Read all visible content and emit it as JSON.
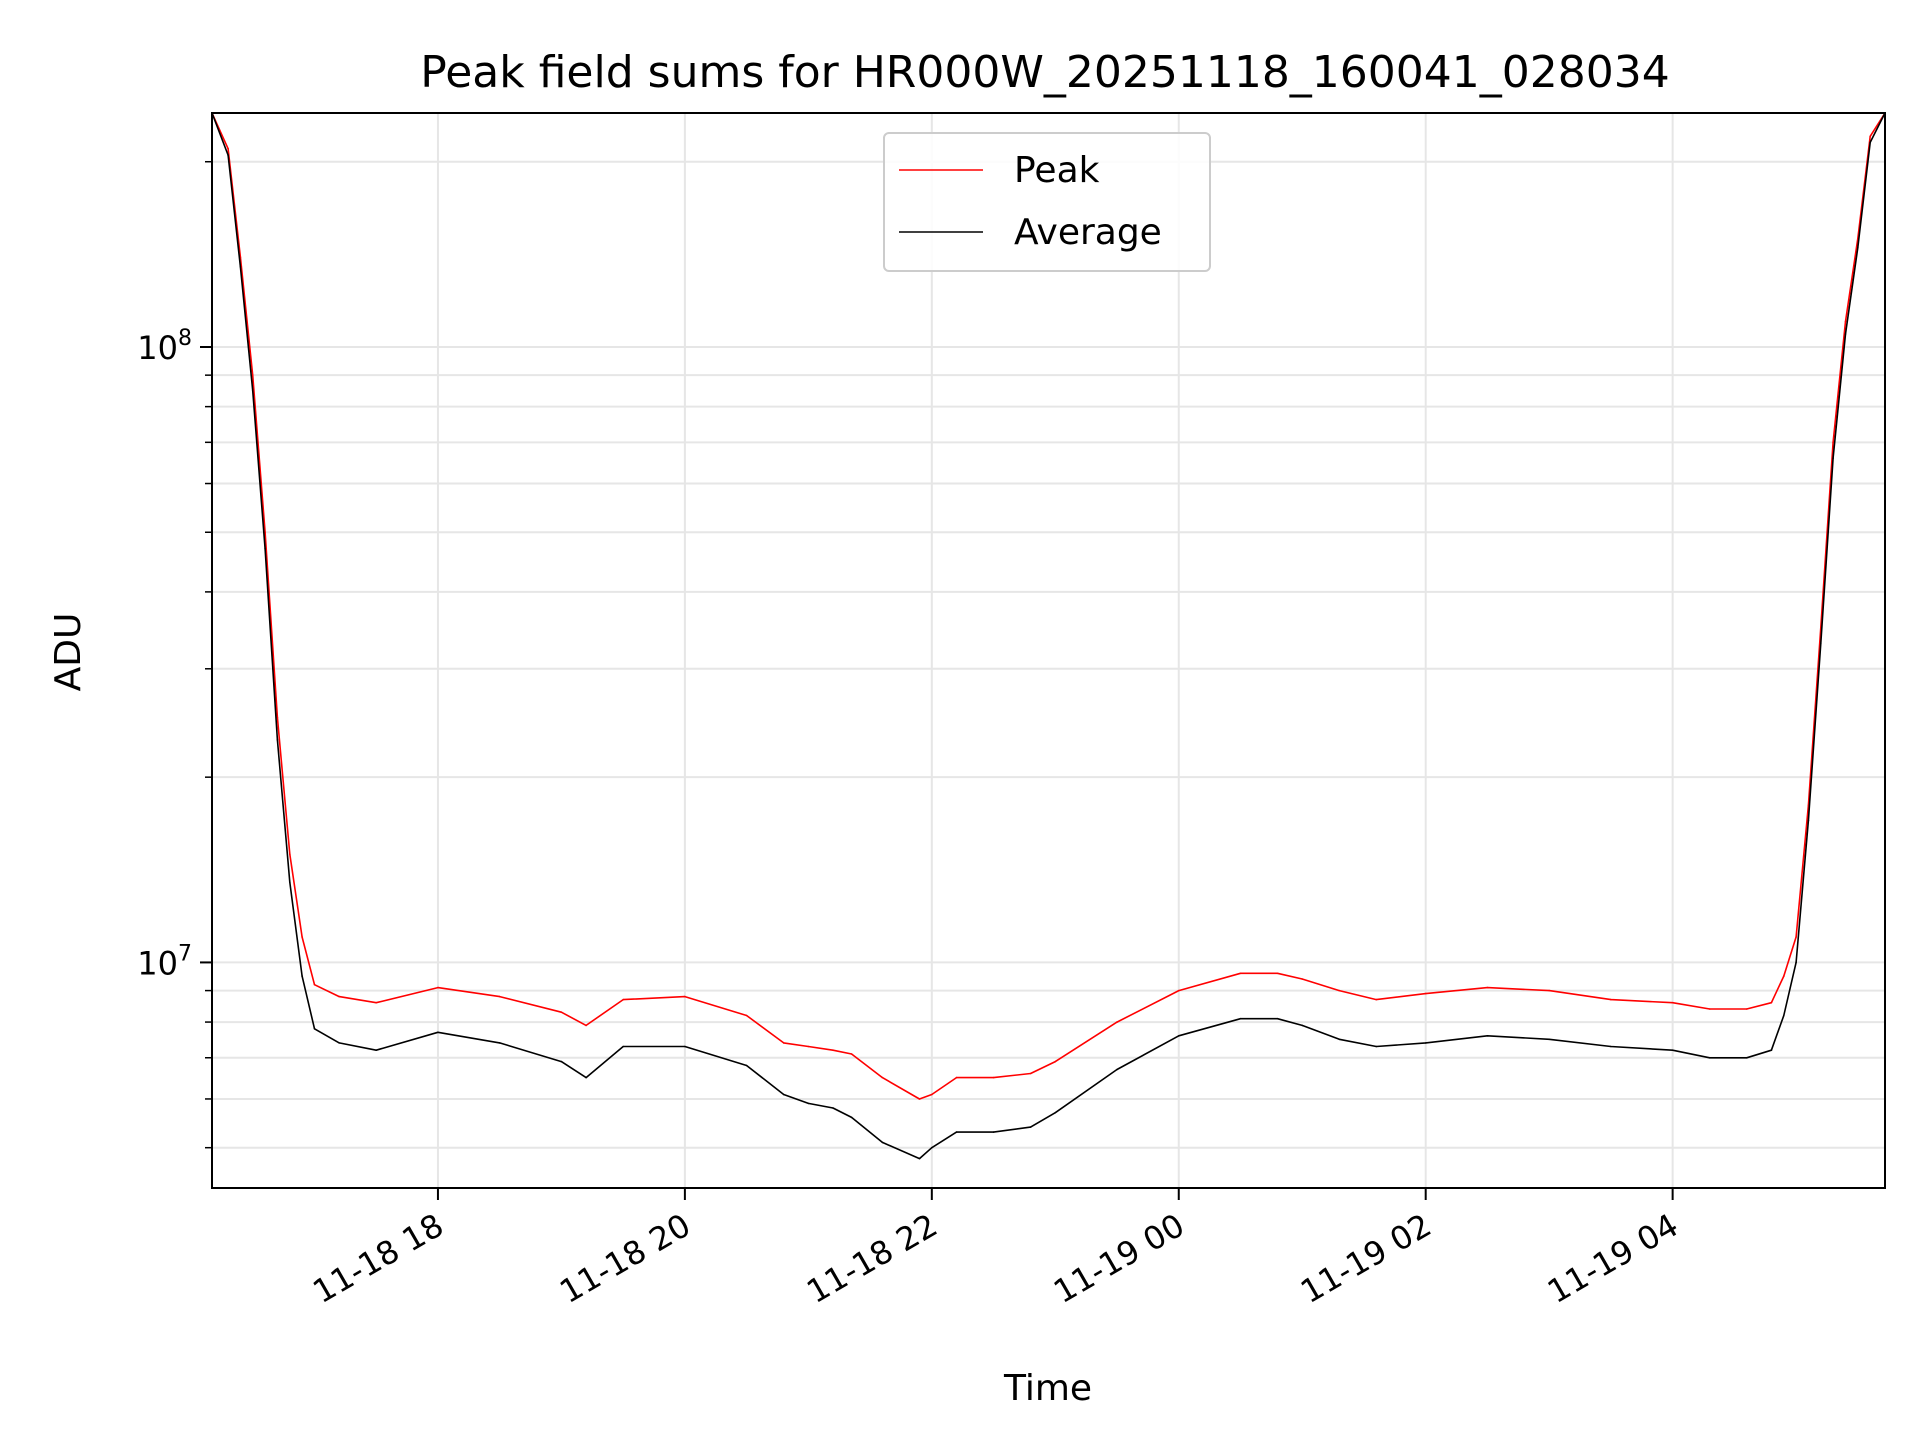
{
  "chart_data": {
    "type": "line",
    "title": "Peak field sums for HR000W_20251118_160041_028034",
    "xlabel": "Time",
    "ylabel": "ADU",
    "x_unit": "hours since 11-18 16:00",
    "xlim": [
      16.17,
      29.72
    ],
    "ylim": [
      4300000,
      240000000
    ],
    "yscale": "log",
    "grid": true,
    "legend_position": "upper-center",
    "x_ticks": [
      {
        "value": 18,
        "label": "11-18 18"
      },
      {
        "value": 20,
        "label": "11-18 20"
      },
      {
        "value": 22,
        "label": "11-18 22"
      },
      {
        "value": 24,
        "label": "11-19 00"
      },
      {
        "value": 26,
        "label": "11-19 02"
      },
      {
        "value": 28,
        "label": "11-19 04"
      }
    ],
    "y_major_ticks": [
      {
        "value": 10000000,
        "base": "10",
        "exp": "7"
      },
      {
        "value": 100000000,
        "base": "10",
        "exp": "8"
      }
    ],
    "y_minor_ticks": [
      5000000,
      6000000,
      7000000,
      8000000,
      9000000,
      20000000,
      30000000,
      40000000,
      50000000,
      60000000,
      70000000,
      80000000,
      90000000,
      200000000
    ],
    "series": [
      {
        "name": "Peak",
        "color": "#ff0000",
        "x": [
          16.17,
          16.3,
          16.4,
          16.5,
          16.6,
          16.7,
          16.8,
          16.9,
          17.0,
          17.2,
          17.5,
          18.0,
          18.5,
          19.0,
          19.2,
          19.5,
          20.0,
          20.5,
          20.8,
          21.0,
          21.2,
          21.35,
          21.6,
          21.9,
          22.0,
          22.2,
          22.5,
          22.8,
          23.0,
          23.5,
          24.0,
          24.5,
          24.8,
          25.0,
          25.3,
          25.6,
          26.0,
          26.5,
          27.0,
          27.5,
          28.0,
          28.3,
          28.6,
          28.8,
          28.9,
          29.0,
          29.1,
          29.2,
          29.3,
          29.4,
          29.5,
          29.6,
          29.72
        ],
        "y": [
          240000000,
          210000000,
          140000000,
          90000000,
          50000000,
          25000000,
          15000000,
          11000000,
          9200000,
          8800000,
          8600000,
          9100000,
          8800000,
          8300000,
          7900000,
          8700000,
          8800000,
          8200000,
          7400000,
          7300000,
          7200000,
          7100000,
          6500000,
          6000000,
          6100000,
          6500000,
          6500000,
          6600000,
          6900000,
          8000000,
          9000000,
          9600000,
          9600000,
          9400000,
          9000000,
          8700000,
          8900000,
          9100000,
          9000000,
          8700000,
          8600000,
          8400000,
          8400000,
          8600000,
          9500000,
          11000000,
          18000000,
          35000000,
          70000000,
          110000000,
          150000000,
          220000000,
          240000000
        ]
      },
      {
        "name": "Average",
        "color": "#000000",
        "x": [
          16.17,
          16.3,
          16.4,
          16.5,
          16.6,
          16.7,
          16.8,
          16.9,
          17.0,
          17.2,
          17.5,
          18.0,
          18.5,
          19.0,
          19.2,
          19.5,
          20.0,
          20.5,
          20.8,
          21.0,
          21.2,
          21.35,
          21.6,
          21.9,
          22.0,
          22.2,
          22.5,
          22.8,
          23.0,
          23.5,
          24.0,
          24.5,
          24.8,
          25.0,
          25.3,
          25.6,
          26.0,
          26.5,
          27.0,
          27.5,
          28.0,
          28.3,
          28.6,
          28.8,
          28.9,
          29.0,
          29.1,
          29.2,
          29.3,
          29.4,
          29.5,
          29.6,
          29.72
        ],
        "y": [
          240000000,
          205000000,
          135000000,
          85000000,
          47000000,
          23000000,
          13500000,
          9500000,
          7800000,
          7400000,
          7200000,
          7700000,
          7400000,
          6900000,
          6500000,
          7300000,
          7300000,
          6800000,
          6100000,
          5900000,
          5800000,
          5600000,
          5100000,
          4800000,
          5000000,
          5300000,
          5300000,
          5400000,
          5700000,
          6700000,
          7600000,
          8100000,
          8100000,
          7900000,
          7500000,
          7300000,
          7400000,
          7600000,
          7500000,
          7300000,
          7200000,
          7000000,
          7000000,
          7200000,
          8200000,
          10000000,
          17000000,
          33000000,
          66000000,
          105000000,
          145000000,
          215000000,
          240000000
        ]
      }
    ]
  }
}
